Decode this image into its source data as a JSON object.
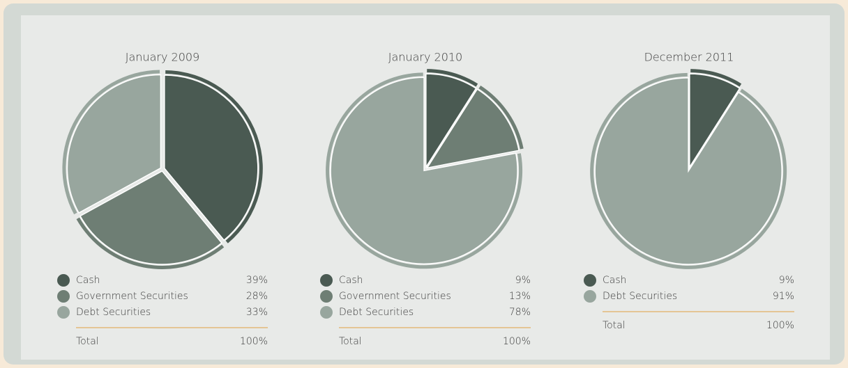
{
  "chart_data": [
    {
      "type": "pie",
      "title": "January 2009",
      "categories": [
        "Cash",
        "Government Securities",
        "Debt Securities"
      ],
      "values": [
        39,
        28,
        33
      ],
      "value_labels": [
        "39%",
        "28%",
        "33%"
      ],
      "colors": [
        "#4a5a52",
        "#6e7e74",
        "#98a69e"
      ],
      "total": {
        "name": "Total",
        "value": 100,
        "label": "100%"
      }
    },
    {
      "type": "pie",
      "title": "January 2010",
      "categories": [
        "Cash",
        "Government Securities",
        "Debt Securities"
      ],
      "values": [
        9,
        13,
        78
      ],
      "value_labels": [
        "9%",
        "13%",
        "78%"
      ],
      "colors": [
        "#4a5a52",
        "#6e7e74",
        "#98a69e"
      ],
      "total": {
        "name": "Total",
        "value": 100,
        "label": "100%"
      }
    },
    {
      "type": "pie",
      "title": "December 2011",
      "categories": [
        "Cash",
        "Debt Securities"
      ],
      "values": [
        9,
        91
      ],
      "value_labels": [
        "9%",
        "91%"
      ],
      "colors": [
        "#4a5a52",
        "#98a69e"
      ],
      "total": {
        "name": "Total",
        "value": 100,
        "label": "100%"
      }
    }
  ]
}
